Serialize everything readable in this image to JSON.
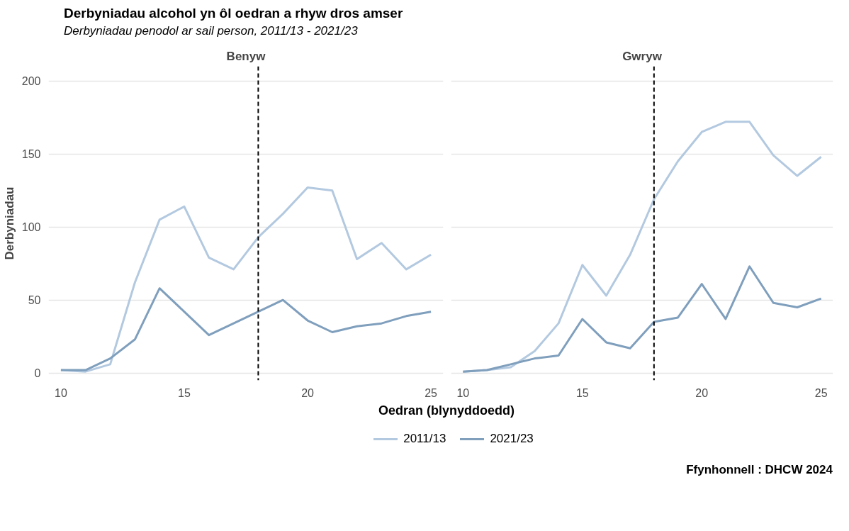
{
  "chart_data": [
    {
      "type": "line",
      "title": "Derbyniadau alcohol yn ôl oedran a rhyw dros amser",
      "subtitle": "Derbyniadau penodol ar sail person, 2011/13 - 2021/23",
      "annotations": [
        "Benyw"
      ],
      "xlabel": "Oedran (blynyddoedd)",
      "ylabel": "Derbyniadau",
      "x": [
        10,
        11,
        12,
        13,
        14,
        15,
        16,
        17,
        18,
        19,
        20,
        21,
        22,
        23,
        24,
        25
      ],
      "series": [
        {
          "name": "2011/13",
          "color": "#b3c9e0",
          "values": [
            2,
            1,
            6,
            62,
            105,
            114,
            79,
            71,
            93,
            109,
            127,
            125,
            78,
            89,
            71,
            81
          ]
        },
        {
          "name": "2021/23",
          "color": "#7f9fbd",
          "values": [
            2,
            2,
            10,
            23,
            58,
            42,
            26,
            34,
            42,
            50,
            36,
            28,
            32,
            34,
            39,
            42
          ]
        }
      ],
      "xlim": [
        9.5,
        25.5
      ],
      "xticks": [
        10,
        15,
        20,
        25
      ],
      "ylim": [
        -5,
        210
      ],
      "yticks": [
        0,
        50,
        100,
        150,
        200
      ],
      "grid": "y",
      "legend": "bottom",
      "ref_lines": [
        {
          "axis": "x",
          "value": 18,
          "color": "#000000",
          "line_style": "dashed"
        }
      ]
    },
    {
      "type": "line",
      "annotations": [
        "Gwryw",
        "Ffynhonnell : DHCW 2024"
      ],
      "x": [
        10,
        11,
        12,
        13,
        14,
        15,
        16,
        17,
        18,
        19,
        20,
        21,
        22,
        23,
        24,
        25
      ],
      "series": [
        {
          "name": "2011/13",
          "color": "#b3c9e0",
          "values": [
            1,
            2,
            4,
            15,
            34,
            74,
            53,
            81,
            119,
            145,
            165,
            172,
            172,
            149,
            135,
            148
          ]
        },
        {
          "name": "2021/23",
          "color": "#7f9fbd",
          "values": [
            1,
            2,
            6,
            10,
            12,
            37,
            21,
            17,
            35,
            38,
            61,
            37,
            73,
            48,
            45,
            51
          ]
        }
      ],
      "xlim": [
        9.5,
        25.5
      ],
      "xticks": [
        10,
        15,
        20,
        25
      ],
      "ylim": [
        -5,
        210
      ],
      "yticks": [
        0,
        50,
        100,
        150,
        200
      ],
      "grid": "y",
      "tick_labels": "x",
      "ref_lines": [
        {
          "axis": "x",
          "value": 18,
          "color": "#000000",
          "line_style": "dashed"
        }
      ]
    }
  ]
}
